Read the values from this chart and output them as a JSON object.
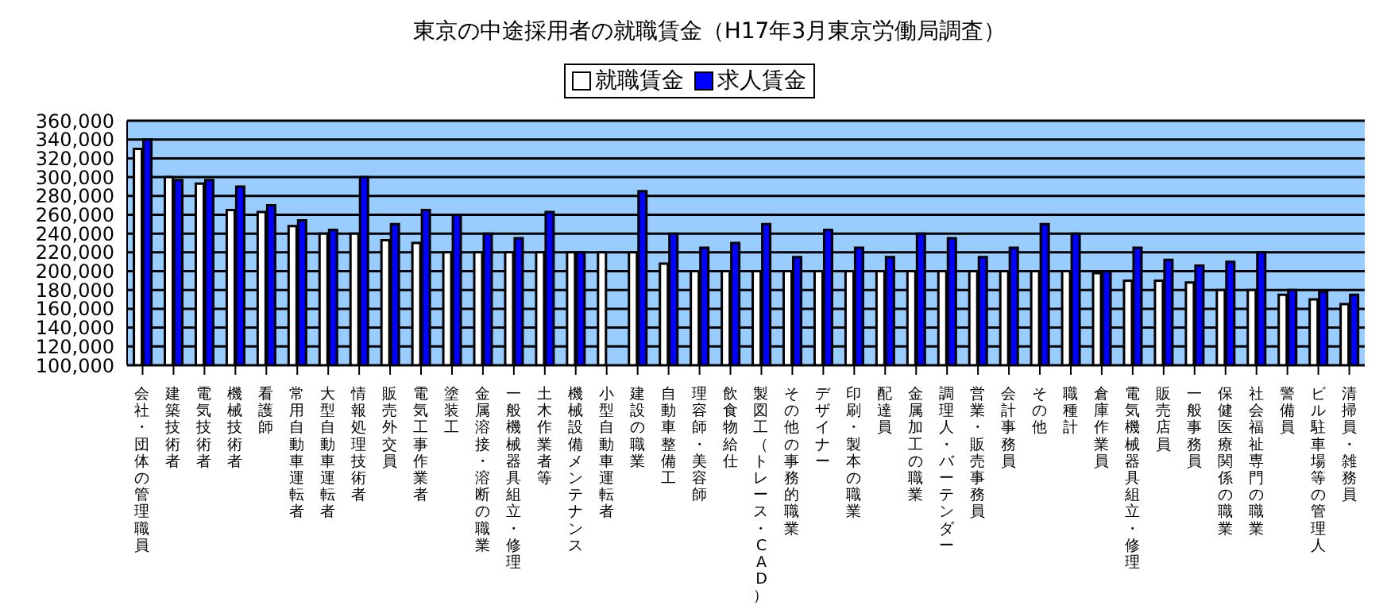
{
  "chart_data": {
    "type": "bar",
    "title": "東京の中途採用者の就職賃金（H17年3月東京労働局調査）",
    "categories": [
      "会社・団体の管理職員",
      "建築技術者",
      "電気技術者",
      "機械技術者",
      "看護師",
      "常用自動車運転者",
      "大型自動車運転者",
      "情報処理技術者",
      "販売外交員",
      "電気工事作業者",
      "塗装工",
      "金属溶接・溶断の職業",
      "一般機械器具組立・修理",
      "土木作業者等",
      "機械設備メンテナンス",
      "小型自動車運転者",
      "建設の職業",
      "自動車整備工",
      "理容師・美容師",
      "飲食物給仕",
      "製図工（トレース・CAD）",
      "その他の事務的職業",
      "デザイナー",
      "印刷・製本の職業",
      "配達員",
      "金属加工の職業",
      "調理人・バーテンダー",
      "営業・販売事務員",
      "会計事務員",
      "その他",
      "職種計",
      "倉庫作業員",
      "電気機械器具組立・修理",
      "販売店員",
      "一般事務員",
      "保健医療関係の職業",
      "社会福祉専門の職業",
      "警備員",
      "ビル駐車場等の管理人",
      "清掃員・雑務員"
    ],
    "series": [
      {
        "name": "就職賃金",
        "color": "#ffffff",
        "values": [
          330000,
          300000,
          293000,
          265000,
          263000,
          248000,
          240000,
          240000,
          233000,
          230000,
          220000,
          220000,
          220000,
          220000,
          220000,
          220000,
          220000,
          208000,
          200000,
          200000,
          200000,
          200000,
          200000,
          200000,
          200000,
          200000,
          200000,
          200000,
          200000,
          200000,
          200000,
          198000,
          190000,
          190000,
          188000,
          180000,
          180000,
          175000,
          170000,
          165000
        ]
      },
      {
        "name": "求人賃金",
        "color": "#0000ff",
        "values": [
          340000,
          297000,
          297000,
          290000,
          270000,
          254000,
          244000,
          300000,
          250000,
          265000,
          260000,
          240000,
          235000,
          263000,
          220000,
          null,
          285000,
          240000,
          225000,
          230000,
          250000,
          215000,
          244000,
          225000,
          215000,
          240000,
          235000,
          215000,
          225000,
          250000,
          240000,
          200000,
          225000,
          212000,
          206000,
          210000,
          220000,
          180000,
          178000,
          175000
        ]
      }
    ],
    "ylim": [
      100000,
      360000
    ],
    "yticks": [
      {
        "value": 100000,
        "label": "100,000"
      },
      {
        "value": 120000,
        "label": "120,000"
      },
      {
        "value": 140000,
        "label": "140,000"
      },
      {
        "value": 160000,
        "label": "160,000"
      },
      {
        "value": 180000,
        "label": "180,000"
      },
      {
        "value": 200000,
        "label": "200,000"
      },
      {
        "value": 220000,
        "label": "220,000"
      },
      {
        "value": 240000,
        "label": "240,000"
      },
      {
        "value": 260000,
        "label": "260,000"
      },
      {
        "value": 280000,
        "label": "280,000"
      },
      {
        "value": 300000,
        "label": "300,000"
      },
      {
        "value": 320000,
        "label": "320,000"
      },
      {
        "value": 340000,
        "label": "340,000"
      },
      {
        "value": 360000,
        "label": "360,000"
      }
    ],
    "grid": "y",
    "legend": "top"
  }
}
